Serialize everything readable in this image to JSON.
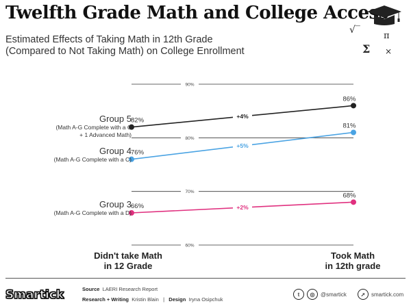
{
  "header": {
    "title": "Twelfth Grade Math and College Access",
    "subtitle_line1": "Estimated Effects of Taking Math in 12th Grade",
    "subtitle_line2": "(Compared to Not Taking Math) on College Enrollment",
    "decor_symbols": [
      "√‾",
      "π",
      "Σ",
      "×"
    ],
    "decor_icon": "graduation-cap-icon"
  },
  "chart_data": {
    "type": "line",
    "subtype": "slope",
    "categories": [
      "Didn't take Math in 12 Grade",
      "Took Math in 12th grade"
    ],
    "category_lines": [
      [
        "Didn't take Math",
        "in 12 Grade"
      ],
      [
        "Took Math",
        "in 12th grade"
      ]
    ],
    "ylim": [
      60,
      90
    ],
    "gridlines": [
      90,
      80,
      70,
      60
    ],
    "gridline_labels": [
      "90%",
      "80%",
      "70%",
      "60%"
    ],
    "series": [
      {
        "name": "Group 5",
        "description": [
          "(Math A-G Complete with a C",
          "+ 1 Advanced Math)"
        ],
        "values": [
          82,
          86
        ],
        "value_labels": [
          "82%",
          "86%"
        ],
        "change_label": "+4%",
        "color": "#222222"
      },
      {
        "name": "Group 4",
        "description": [
          "(Math A-G Complete with a C)"
        ],
        "values": [
          76,
          81
        ],
        "value_labels": [
          "76%",
          "81%"
        ],
        "change_label": "+5%",
        "color": "#4aa3e3"
      },
      {
        "name": "Group 3",
        "description": [
          "(Math A-G Complete with a D)"
        ],
        "values": [
          66,
          68
        ],
        "value_labels": [
          "66%",
          "68%"
        ],
        "change_label": "+2%",
        "color": "#e0307f"
      }
    ]
  },
  "footer": {
    "logo": "Smartick",
    "source_label": "Source",
    "source_value": "LAERI Research Report",
    "research_label": "Research + Writing",
    "research_value": "Kristin Blain",
    "separator": "|",
    "design_label": "Design",
    "design_value": "Iryna Osipchuk",
    "social_handle": "@smartick",
    "website": "smartick.com"
  }
}
